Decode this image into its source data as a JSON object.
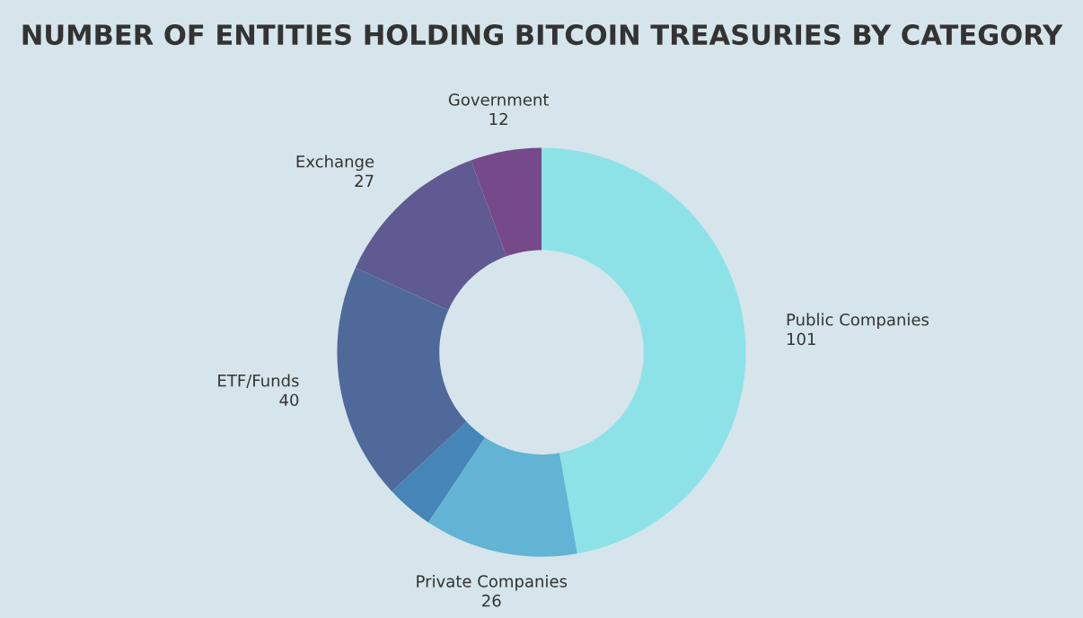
{
  "chart_data": {
    "type": "donut",
    "title": "NUMBER OF ENTITIES HOLDING BITCOIN TREASURIES BY CATEGORY",
    "categories": [
      "Public Companies",
      "Private Companies",
      null,
      "ETF/Funds",
      "Exchange",
      "Government"
    ],
    "values": [
      101,
      26,
      8,
      40,
      27,
      12
    ],
    "value_labels": [
      "101",
      "26",
      null,
      "40",
      "27",
      "12"
    ],
    "colors": [
      "#8de2e8",
      "#62b3d4",
      "#4585b8",
      "#4f6a9a",
      "#5f5a91",
      "#764a8a"
    ],
    "legend": false
  }
}
